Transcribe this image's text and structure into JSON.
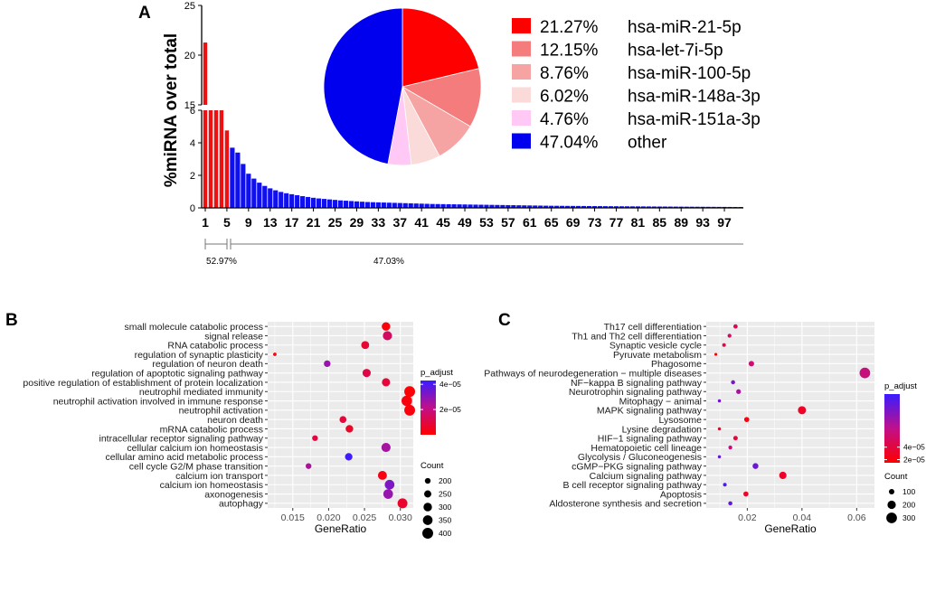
{
  "chart_data": [
    {
      "panel": "A",
      "type": "bar",
      "ylabel": "%miRNA over total",
      "ylim_lower": [
        0,
        6
      ],
      "ylim_upper": [
        15,
        25
      ],
      "yticks_lower": [
        "0",
        "2",
        "4",
        "6"
      ],
      "yticks_upper": [
        "15",
        "20",
        "25"
      ],
      "xtick_labels": [
        "1",
        "5",
        "9",
        "13",
        "17",
        "21",
        "25",
        "29",
        "33",
        "37",
        "41",
        "45",
        "49",
        "53",
        "57",
        "61",
        "65",
        "69",
        "73",
        "77",
        "81",
        "85",
        "89",
        "93",
        "97"
      ],
      "values": [
        21.27,
        12.15,
        8.76,
        6.02,
        4.76,
        3.7,
        3.4,
        2.7,
        2.1,
        1.8,
        1.55,
        1.35,
        1.2,
        1.08,
        0.98,
        0.9,
        0.84,
        0.78,
        0.72,
        0.67,
        0.62,
        0.58,
        0.55,
        0.52,
        0.49,
        0.46,
        0.44,
        0.42,
        0.4,
        0.38,
        0.36,
        0.35,
        0.34,
        0.33,
        0.32,
        0.31,
        0.3,
        0.29,
        0.28,
        0.27,
        0.26,
        0.25,
        0.24,
        0.235,
        0.23,
        0.225,
        0.22,
        0.215,
        0.21,
        0.205,
        0.2,
        0.195,
        0.19,
        0.185,
        0.18,
        0.175,
        0.17,
        0.165,
        0.16,
        0.155,
        0.15,
        0.145,
        0.14,
        0.135,
        0.13,
        0.128,
        0.125,
        0.122,
        0.12,
        0.118,
        0.115,
        0.112,
        0.11,
        0.108,
        0.105,
        0.102,
        0.1,
        0.098,
        0.096,
        0.094,
        0.092,
        0.09,
        0.088,
        0.086,
        0.084,
        0.082,
        0.08,
        0.078,
        0.076,
        0.074,
        0.072,
        0.07,
        0.068,
        0.066,
        0.064,
        0.062,
        0.06,
        0.058,
        0.056,
        0.054
      ],
      "top_n_colored": 5,
      "bar_colors": {
        "top": "#ee1111",
        "rest": "#1010ee"
      },
      "brackets": [
        "52.97%",
        "47.03%"
      ]
    },
    {
      "panel": "A-inset",
      "type": "pie",
      "slices": [
        {
          "pct_label": "21.27%",
          "name": "hsa-miR-21-5p",
          "value": 21.27,
          "color": "#ff0000"
        },
        {
          "pct_label": "12.15%",
          "name": "hsa-let-7i-5p",
          "value": 12.15,
          "color": "#f47c7c"
        },
        {
          "pct_label": "8.76%",
          "name": "hsa-miR-100-5p",
          "value": 8.76,
          "color": "#f5a3a3"
        },
        {
          "pct_label": "6.02%",
          "name": "hsa-miR-148a-3p",
          "value": 6.02,
          "color": "#fbdada"
        },
        {
          "pct_label": "4.76%",
          "name": "hsa-miR-151a-3p",
          "value": 4.76,
          "color": "#ffc8f5"
        },
        {
          "pct_label": "47.04%",
          "name": "other",
          "value": 47.04,
          "color": "#0000ee"
        }
      ]
    },
    {
      "panel": "B",
      "type": "scatter",
      "xlabel": "GeneRatio",
      "xlim": [
        0.0115,
        0.0318
      ],
      "xticks": [
        0.015,
        0.02,
        0.025,
        0.03
      ],
      "xtick_labels": [
        "0.015",
        "0.020",
        "0.025",
        "0.030"
      ],
      "color_legend": {
        "title": "p_adjust",
        "min": 0,
        "max": 4.3e-05,
        "ticks": [
          {
            "v": 4e-05,
            "label": "4e−05"
          },
          {
            "v": 2e-05,
            "label": "2e−05"
          }
        ]
      },
      "size_legend": {
        "title": "Count",
        "items": [
          200,
          250,
          300,
          350,
          400
        ],
        "min": 100,
        "max": 420
      },
      "points": [
        {
          "term": "small molecule catabolic process",
          "x": 0.028,
          "count": 300,
          "p": 2e-06
        },
        {
          "term": "signal release",
          "x": 0.0282,
          "count": 330,
          "p": 1.5e-05
        },
        {
          "term": "RNA catabolic process",
          "x": 0.0251,
          "count": 280,
          "p": 8e-06
        },
        {
          "term": "regulation of synaptic plasticity",
          "x": 0.0125,
          "count": 130,
          "p": 1e-06
        },
        {
          "term": "regulation of neuron death",
          "x": 0.0198,
          "count": 230,
          "p": 2.8e-05
        },
        {
          "term": "regulation of apoptotic signaling pathway",
          "x": 0.0253,
          "count": 290,
          "p": 1.1e-05
        },
        {
          "term": "positive regulation of establishment of protein localization",
          "x": 0.028,
          "count": 290,
          "p": 9e-06
        },
        {
          "term": "neutrophil mediated immunity",
          "x": 0.0313,
          "count": 400,
          "p": 1e-06
        },
        {
          "term": "neutrophil activation involved in immune response",
          "x": 0.0309,
          "count": 390,
          "p": 2e-06
        },
        {
          "term": "neutrophil activation",
          "x": 0.0313,
          "count": 400,
          "p": 2e-06
        },
        {
          "term": "neuron death",
          "x": 0.022,
          "count": 240,
          "p": 9e-06
        },
        {
          "term": "mRNA catabolic process",
          "x": 0.0229,
          "count": 265,
          "p": 6e-06
        },
        {
          "term": "intracellular receptor signaling pathway",
          "x": 0.0181,
          "count": 200,
          "p": 1e-05
        },
        {
          "term": "cellular calcium ion homeostasis",
          "x": 0.028,
          "count": 330,
          "p": 2.6e-05
        },
        {
          "term": "cellular amino acid metabolic process",
          "x": 0.0228,
          "count": 260,
          "p": 4.2e-05
        },
        {
          "term": "cell cycle G2/M phase transition",
          "x": 0.0172,
          "count": 200,
          "p": 2.5e-05
        },
        {
          "term": "calcium ion transport",
          "x": 0.0275,
          "count": 320,
          "p": 3e-06
        },
        {
          "term": "calcium ion homeostasis",
          "x": 0.0285,
          "count": 350,
          "p": 3.2e-05
        },
        {
          "term": "axonogenesis",
          "x": 0.0283,
          "count": 350,
          "p": 2.8e-05
        },
        {
          "term": "autophagy",
          "x": 0.0303,
          "count": 360,
          "p": 7e-06
        }
      ]
    },
    {
      "panel": "C",
      "type": "scatter",
      "xlabel": "GeneRatio",
      "xlim": [
        0.005,
        0.0665
      ],
      "xticks": [
        0.02,
        0.04,
        0.06
      ],
      "xtick_labels": [
        "0.02",
        "0.04",
        "0.06"
      ],
      "color_legend": {
        "title": "p_adjust",
        "min": 1.5e-05,
        "max": 0.000125,
        "ticks": [
          {
            "v": 4e-05,
            "label": "4e−05"
          },
          {
            "v": 2e-05,
            "label": "2e−05"
          }
        ]
      },
      "size_legend": {
        "title": "Count",
        "items": [
          100,
          200,
          300
        ],
        "min": 40,
        "max": 330
      },
      "points": [
        {
          "term": "Th17 cell differentiation",
          "x": 0.0157,
          "count": 70,
          "p": 5e-05
        },
        {
          "term": "Th1 and Th2 cell differentiation",
          "x": 0.0135,
          "count": 60,
          "p": 5.5e-05
        },
        {
          "term": "Synaptic vesicle cycle",
          "x": 0.0115,
          "count": 55,
          "p": 4.5e-05
        },
        {
          "term": "Pyruvate metabolism",
          "x": 0.0085,
          "count": 40,
          "p": 2e-05
        },
        {
          "term": "Phagosome",
          "x": 0.0215,
          "count": 100,
          "p": 6e-05
        },
        {
          "term": "Pathways of neurodegeneration − multiple diseases",
          "x": 0.063,
          "count": 300,
          "p": 6.5e-05
        },
        {
          "term": "NF−kappa B signaling pathway",
          "x": 0.0148,
          "count": 65,
          "p": 0.0001
        },
        {
          "term": "Neurotrophin signaling pathway",
          "x": 0.0168,
          "count": 80,
          "p": 8e-05
        },
        {
          "term": "Mitophagy − animal",
          "x": 0.0098,
          "count": 45,
          "p": 0.000105
        },
        {
          "term": "MAPK signaling pathway",
          "x": 0.04,
          "count": 190,
          "p": 3e-05
        },
        {
          "term": "Lysosome",
          "x": 0.0198,
          "count": 90,
          "p": 2e-05
        },
        {
          "term": "Lysine degradation",
          "x": 0.0098,
          "count": 45,
          "p": 3e-05
        },
        {
          "term": "HIF−1 signaling pathway",
          "x": 0.0157,
          "count": 75,
          "p": 4e-05
        },
        {
          "term": "Hematopoietic cell lineage",
          "x": 0.0138,
          "count": 60,
          "p": 6.5e-05
        },
        {
          "term": "Glycolysis / Gluconeogenesis",
          "x": 0.0098,
          "count": 45,
          "p": 0.00011
        },
        {
          "term": "cGMP−PKG signaling pathway",
          "x": 0.023,
          "count": 110,
          "p": 0.000105
        },
        {
          "term": "Calcium signaling pathway",
          "x": 0.033,
          "count": 160,
          "p": 3e-05
        },
        {
          "term": "B cell receptor signaling pathway",
          "x": 0.0118,
          "count": 55,
          "p": 0.000115
        },
        {
          "term": "Apoptosis",
          "x": 0.0195,
          "count": 90,
          "p": 3e-05
        },
        {
          "term": "Aldosterone synthesis and secretion",
          "x": 0.0138,
          "count": 65,
          "p": 0.00011
        }
      ]
    }
  ],
  "labels": {
    "panel_a": "A",
    "panel_b": "B",
    "panel_c": "C"
  }
}
